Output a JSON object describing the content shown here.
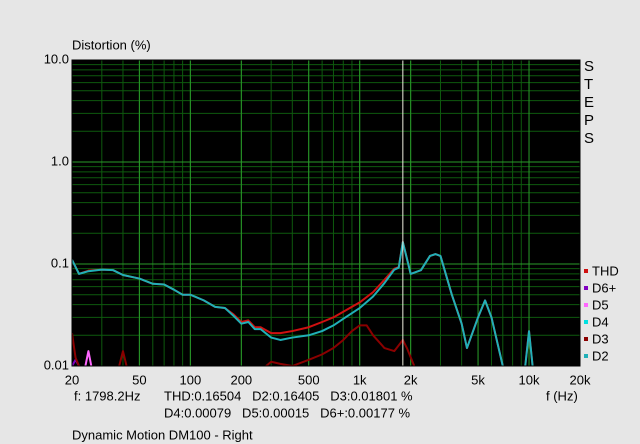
{
  "chart_data": {
    "type": "line",
    "title": "Distortion (%)",
    "side_label": "STEPS",
    "x_label": "f (Hz)",
    "subtitle": "Dynamic Motion DM100 - Right",
    "readout": [
      "f: 1798.2Hz",
      "THD:0.16504   D2:0.16405   D3:0.01801 %",
      "D4:0.00079   D5:0.00015   D6+:0.00177 %"
    ],
    "cursor_x": 1798.2,
    "xlog": true,
    "ylog": true,
    "grid": true,
    "minor_grid": true,
    "legend": "bottom-right",
    "xlim": [
      20,
      20000
    ],
    "ylim": [
      0.01,
      10
    ],
    "xticks": [
      20,
      50,
      100,
      200,
      500,
      {
        "value": 1000,
        "label": "1k"
      },
      {
        "value": 2000,
        "label": "2k"
      },
      {
        "value": 5000,
        "label": "5k"
      },
      {
        "value": 10000,
        "label": "10k"
      },
      {
        "value": 20000,
        "label": "20k"
      }
    ],
    "yticks": [
      {
        "value": 10,
        "label": "10.0"
      },
      {
        "value": 1,
        "label": "1.0"
      },
      0.1,
      0.01
    ],
    "series": [
      {
        "name": "THD",
        "color": "#d01010",
        "x": [
          20,
          22,
          25,
          30,
          35,
          40,
          50,
          60,
          70,
          80,
          90,
          100,
          120,
          140,
          160,
          180,
          200,
          220,
          240,
          260,
          300,
          340,
          400,
          500,
          600,
          700,
          800,
          1000,
          1200,
          1400,
          1600,
          1700,
          1798.2,
          2000,
          2300,
          2600,
          2800,
          3000,
          3500,
          4000,
          4300,
          5000,
          5500,
          6000,
          7000,
          8500,
          9500,
          10000,
          10500
        ],
        "values": [
          0.11,
          0.08,
          0.086,
          0.088,
          0.087,
          0.078,
          0.072,
          0.064,
          0.063,
          0.056,
          0.05,
          0.05,
          0.044,
          0.038,
          0.037,
          0.032,
          0.027,
          0.028,
          0.024,
          0.024,
          0.021,
          0.021,
          0.022,
          0.024,
          0.027,
          0.03,
          0.034,
          0.042,
          0.053,
          0.07,
          0.09,
          0.093,
          0.165,
          0.08,
          0.087,
          0.12,
          0.125,
          0.12,
          0.05,
          0.026,
          0.015,
          0.03,
          0.044,
          0.03,
          0.01,
          null,
          0.01,
          0.022,
          0.01
        ]
      },
      {
        "name": "D6+",
        "color": "#8000c0",
        "x": [
          20,
          21,
          22
        ],
        "values": [
          0.01,
          0.0115,
          0.01
        ]
      },
      {
        "name": "D5",
        "color": "#ff66ff",
        "x": [
          24,
          25,
          26
        ],
        "values": [
          0.01,
          0.014,
          0.01
        ]
      },
      {
        "name": "D4",
        "color": "#00e0e0",
        "x": [],
        "values": []
      },
      {
        "name": "D3",
        "color": "#8b0000",
        "x": [
          20,
          21,
          22,
          23,
          38,
          40,
          42,
          45,
          280,
          300,
          340,
          400,
          500,
          600,
          700,
          800,
          900,
          1000,
          1100,
          1200,
          1400,
          1600,
          1798.2,
          1900,
          2100
        ],
        "values": [
          0.021,
          0.012,
          0.01,
          null,
          0.01,
          0.014,
          0.01,
          null,
          0.01,
          0.011,
          0.0105,
          0.01,
          0.0115,
          0.013,
          0.015,
          0.018,
          0.022,
          0.025,
          0.025,
          0.02,
          0.015,
          0.014,
          0.018,
          0.015,
          0.01
        ]
      },
      {
        "name": "D2",
        "color": "#20b0b8",
        "x": [
          20,
          22,
          25,
          30,
          35,
          40,
          50,
          60,
          70,
          80,
          90,
          100,
          120,
          140,
          160,
          180,
          200,
          220,
          240,
          260,
          300,
          340,
          400,
          500,
          600,
          700,
          800,
          1000,
          1200,
          1400,
          1600,
          1700,
          1798.2,
          2000,
          2300,
          2600,
          2800,
          3000,
          3500,
          4000,
          4300,
          5000,
          5500,
          6000,
          7000,
          8500,
          9500,
          10000,
          10500
        ],
        "values": [
          0.11,
          0.08,
          0.085,
          0.088,
          0.087,
          0.078,
          0.072,
          0.064,
          0.063,
          0.056,
          0.05,
          0.05,
          0.044,
          0.038,
          0.037,
          0.031,
          0.026,
          0.027,
          0.023,
          0.023,
          0.019,
          0.018,
          0.019,
          0.02,
          0.022,
          0.025,
          0.029,
          0.037,
          0.048,
          0.065,
          0.088,
          0.092,
          0.164,
          0.08,
          0.087,
          0.12,
          0.125,
          0.12,
          0.05,
          0.026,
          0.015,
          0.03,
          0.044,
          0.03,
          0.01,
          null,
          0.01,
          0.022,
          0.01
        ]
      }
    ]
  }
}
